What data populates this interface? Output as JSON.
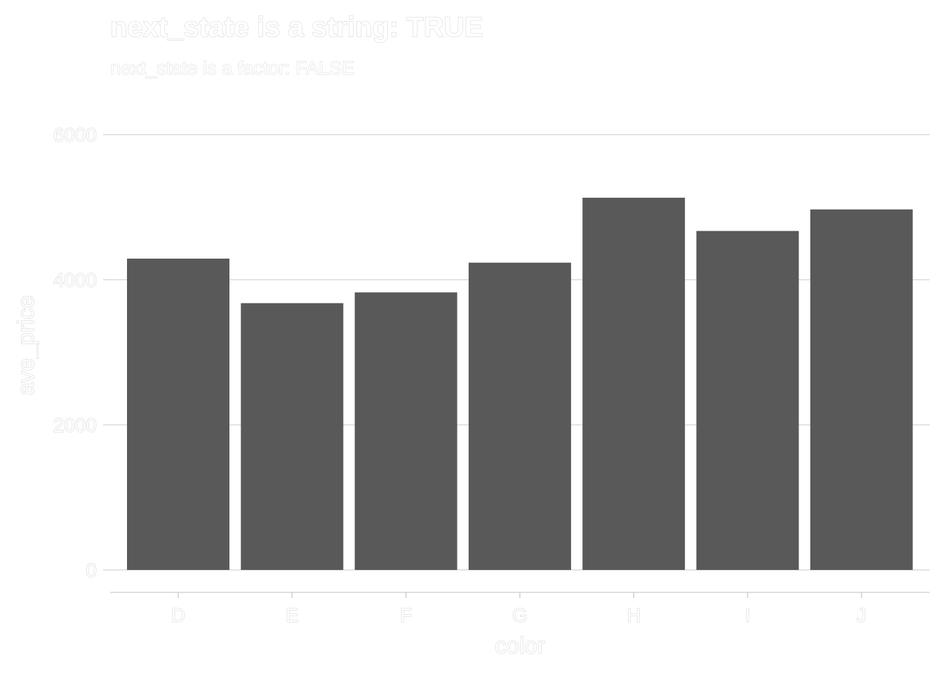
{
  "chart_data": {
    "type": "bar",
    "title": "next_state is a string: TRUE",
    "subtitle": "next_state is a factor: FALSE",
    "xlabel": "color",
    "ylabel": "ave_price",
    "categories": [
      "D",
      "E",
      "F",
      "G",
      "H",
      "I",
      "J"
    ],
    "values": [
      4291,
      3677,
      3825,
      4235,
      5130,
      4672,
      4969
    ],
    "ylim": [
      -300,
      6200
    ],
    "yticks": [
      0,
      2000,
      4000,
      6000
    ],
    "ytick_labels": [
      "0",
      "2000",
      "4000",
      "6000"
    ],
    "grid": true,
    "bar_color": "#595959",
    "legend": "none"
  }
}
